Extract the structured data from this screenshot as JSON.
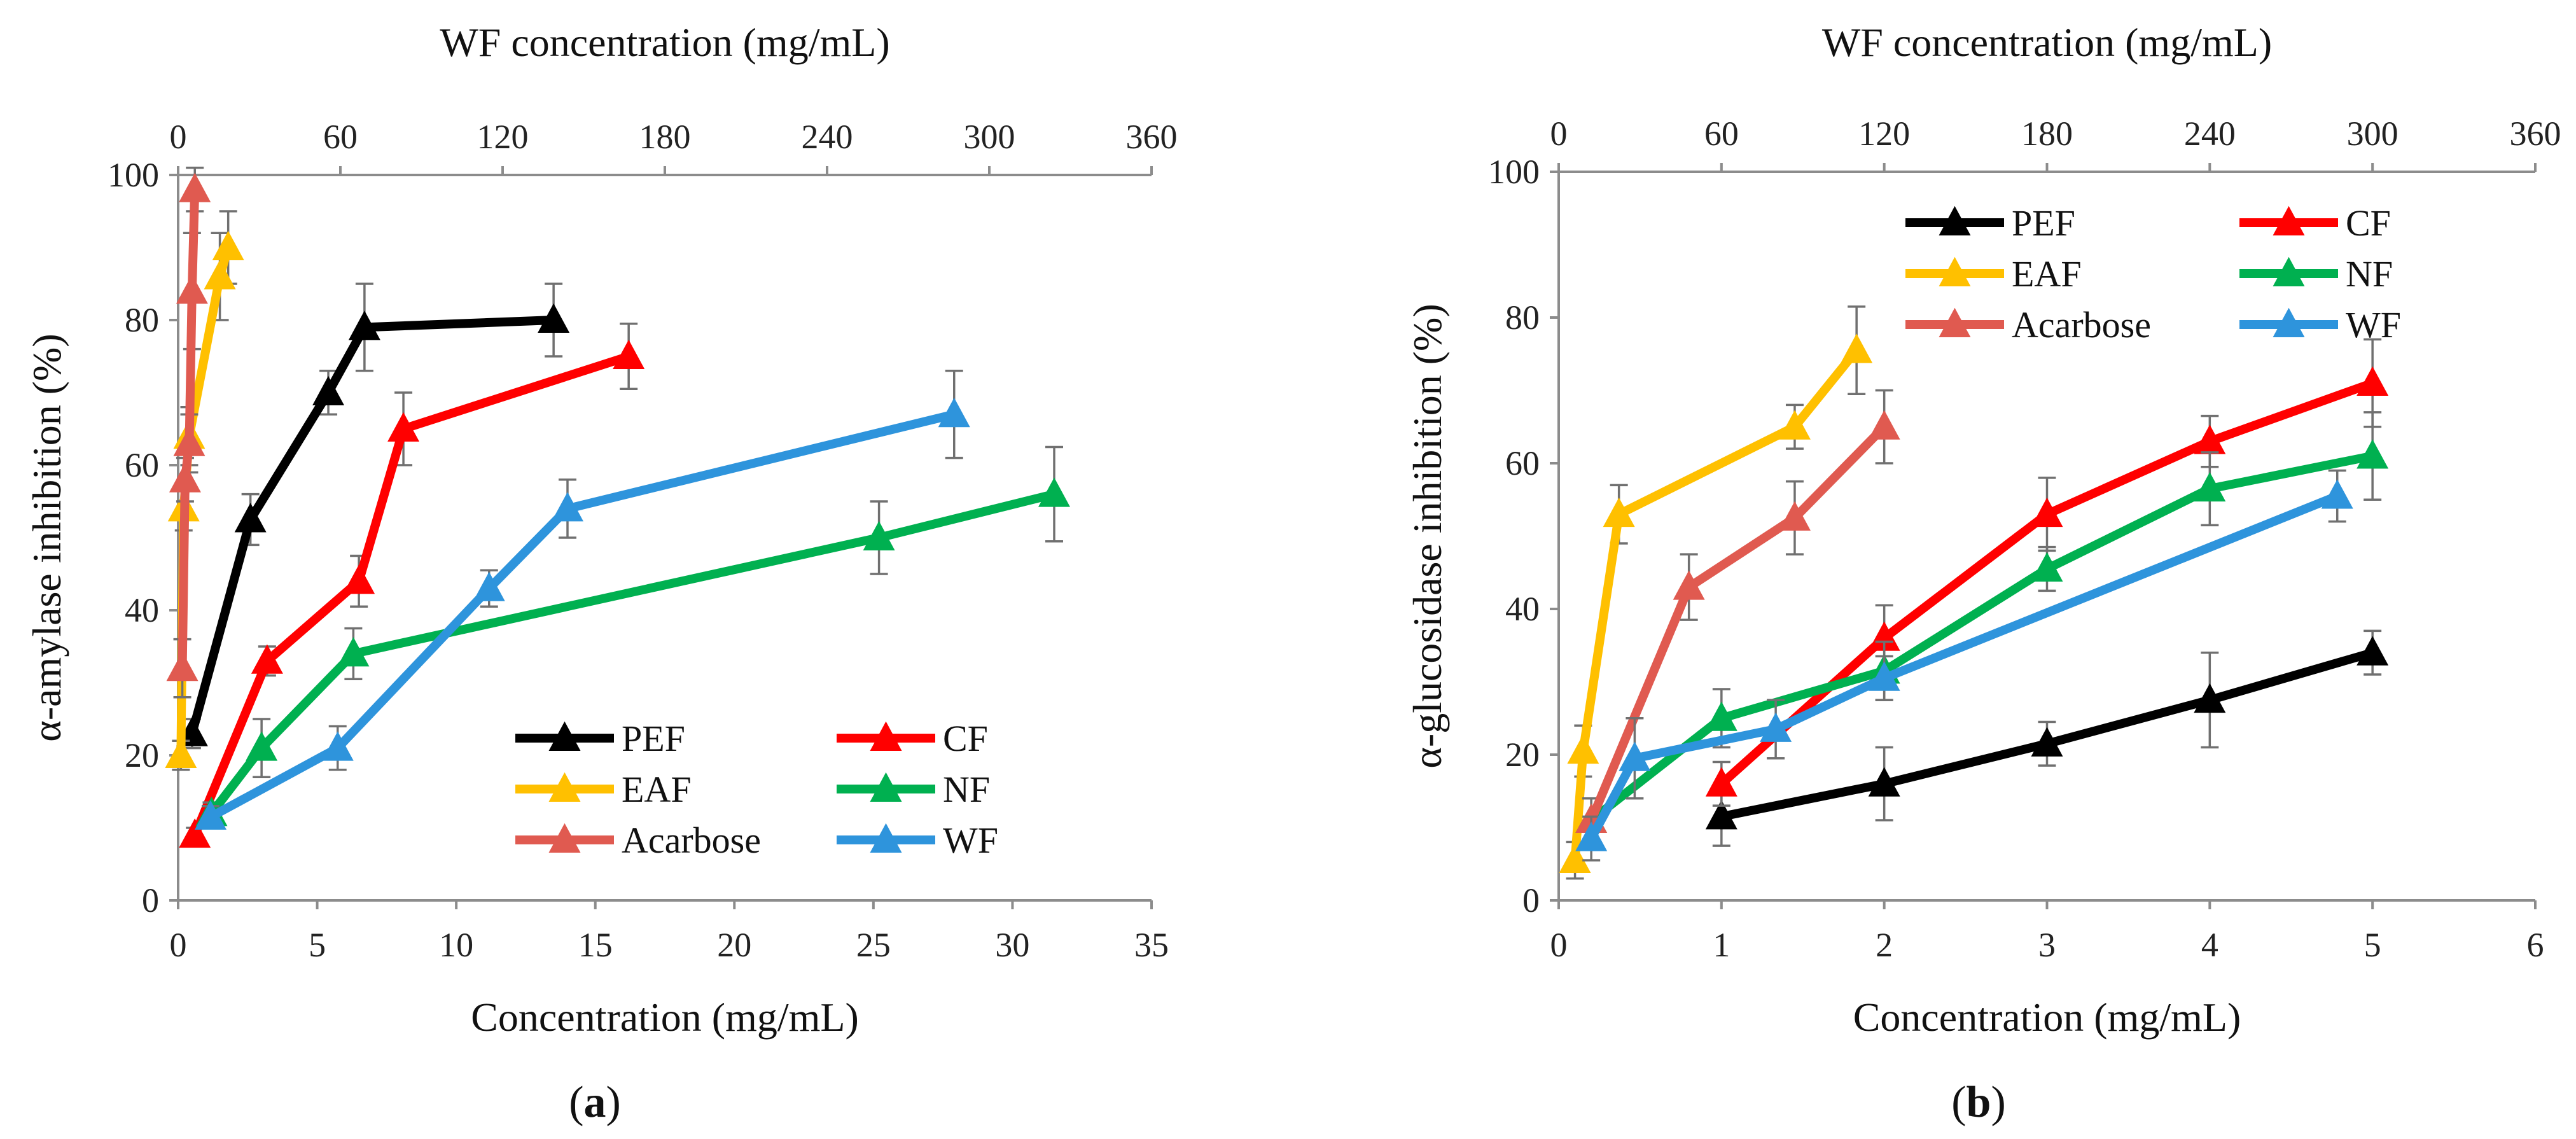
{
  "chart_data": [
    {
      "type": "line",
      "panel_label": "(a)",
      "panel_letter": "a",
      "xlabel": "Concentration (mg/mL)",
      "x2label": "WF concentration (mg/mL)",
      "ylabel": "α-amylase inhibition (%)",
      "xlim": [
        0,
        35
      ],
      "x2lim": [
        0,
        360
      ],
      "ylim": [
        0,
        100
      ],
      "xticks": [
        0,
        5,
        10,
        15,
        20,
        25,
        30,
        35
      ],
      "x2ticks": [
        0,
        60,
        120,
        180,
        240,
        300,
        360
      ],
      "yticks": [
        0,
        20,
        40,
        60,
        80,
        100
      ],
      "legend_position": "bottom-right",
      "series": [
        {
          "name": "PEF",
          "color": "#000000",
          "axis": "bottom",
          "x": [
            0.5,
            2.6,
            5.4,
            6.7,
            13.5
          ],
          "y": [
            23,
            52.5,
            70,
            79,
            80
          ],
          "err": [
            2,
            3.5,
            3,
            6,
            5
          ]
        },
        {
          "name": "CF",
          "color": "#ff0000",
          "axis": "bottom",
          "x": [
            0.6,
            3.2,
            6.5,
            8.1,
            16.2
          ],
          "y": [
            9,
            33,
            44,
            65,
            75
          ],
          "err": [
            1,
            2,
            3.5,
            5,
            4.5
          ]
        },
        {
          "name": "EAF",
          "color": "#ffc000",
          "axis": "bottom",
          "x": [
            0.1,
            0.2,
            0.4,
            1.5,
            1.8
          ],
          "y": [
            20,
            54,
            64,
            86,
            90
          ],
          "err": [
            2,
            3,
            4,
            6,
            5
          ]
        },
        {
          "name": "NF",
          "color": "#00b050",
          "axis": "bottom",
          "x": [
            1.2,
            3.0,
            6.3,
            25.2,
            31.5
          ],
          "y": [
            12,
            21,
            34,
            50,
            56
          ],
          "err": [
            1.5,
            4,
            3.5,
            5,
            6.5
          ]
        },
        {
          "name": "Acarbose",
          "color": "#e05a50",
          "axis": "bottom",
          "x": [
            0.15,
            0.25,
            0.4,
            0.5,
            0.6
          ],
          "y": [
            32,
            58,
            63,
            84,
            98
          ],
          "err": [
            4,
            3,
            4,
            8,
            3
          ]
        },
        {
          "name": "WF",
          "color": "#2e94dc",
          "axis": "top",
          "x": [
            12,
            59,
            115,
            144,
            287
          ],
          "y": [
            11.5,
            21,
            43,
            54,
            67
          ],
          "err": [
            1.5,
            3,
            2.5,
            4,
            6
          ]
        }
      ]
    },
    {
      "type": "line",
      "panel_label": "(b)",
      "panel_letter": "b",
      "xlabel": "Concentration (mg/mL)",
      "x2label": "WF concentration (mg/mL)",
      "ylabel": "α-glucosidase inhibition (%)",
      "xlim": [
        0,
        6
      ],
      "x2lim": [
        0,
        360
      ],
      "ylim": [
        0,
        100
      ],
      "xticks": [
        0,
        1,
        2,
        3,
        4,
        5,
        6
      ],
      "x2ticks": [
        0,
        60,
        120,
        180,
        240,
        300,
        360
      ],
      "yticks": [
        0,
        20,
        40,
        60,
        80,
        100
      ],
      "legend_position": "top",
      "series": [
        {
          "name": "PEF",
          "color": "#000000",
          "axis": "bottom",
          "x": [
            1,
            2,
            3,
            4,
            5
          ],
          "y": [
            11.5,
            16,
            21.5,
            27.5,
            34
          ],
          "err": [
            4,
            5,
            3,
            6.5,
            3
          ]
        },
        {
          "name": "CF",
          "color": "#ff0000",
          "axis": "bottom",
          "x": [
            1,
            2,
            3,
            4,
            5
          ],
          "y": [
            16,
            36,
            53,
            63,
            71
          ],
          "err": [
            3,
            4.5,
            5,
            3.5,
            6
          ]
        },
        {
          "name": "EAF",
          "color": "#ffc000",
          "axis": "bottom",
          "x": [
            0.1,
            0.15,
            0.37,
            1.45,
            1.83
          ],
          "y": [
            5.5,
            20.5,
            53,
            65,
            75.5
          ],
          "err": [
            2.5,
            3.5,
            4,
            3,
            6
          ]
        },
        {
          "name": "NF",
          "color": "#00b050",
          "axis": "bottom",
          "x": [
            0.2,
            1,
            2,
            3,
            4,
            5
          ],
          "y": [
            11,
            25,
            31.5,
            45.5,
            56.5,
            61
          ],
          "err": [
            3,
            4,
            4,
            3,
            5,
            6
          ]
        },
        {
          "name": "Acarbose",
          "color": "#e05a50",
          "axis": "bottom",
          "x": [
            0.2,
            0.8,
            1.45,
            2
          ],
          "y": [
            11,
            43,
            52.5,
            65
          ],
          "err": [
            3,
            4.5,
            5,
            5
          ]
        },
        {
          "name": "WF",
          "color": "#2e94dc",
          "axis": "top",
          "x": [
            12,
            28,
            80,
            120,
            287
          ],
          "y": [
            8.5,
            19.5,
            23.5,
            30.5,
            55.5
          ],
          "err": [
            3,
            5.5,
            4,
            3,
            3.5
          ]
        }
      ]
    }
  ]
}
